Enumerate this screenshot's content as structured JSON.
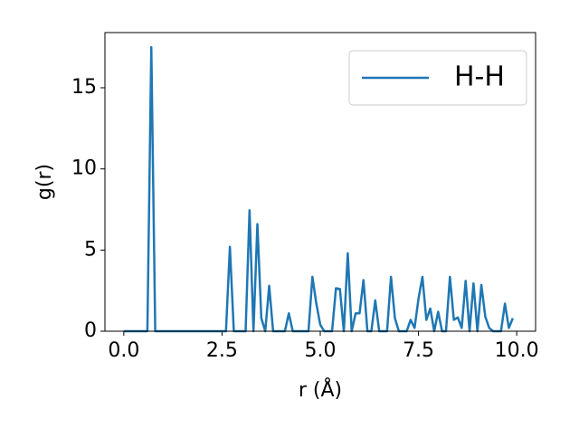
{
  "chart_data": {
    "type": "line",
    "xlabel": "r (Å)",
    "ylabel": "g(r)",
    "x": [
      0,
      0.1,
      0.2,
      0.3,
      0.4,
      0.5,
      0.6,
      0.7,
      0.8,
      0.9,
      1,
      1.1,
      1.2,
      1.3,
      1.4,
      1.5,
      1.6,
      1.7,
      1.8,
      1.9,
      2,
      2.1,
      2.2,
      2.3,
      2.4,
      2.5,
      2.6,
      2.7,
      2.8,
      2.9,
      3,
      3.1,
      3.2,
      3.3,
      3.4,
      3.5,
      3.6,
      3.7,
      3.8,
      3.9,
      4,
      4.1,
      4.2,
      4.3,
      4.4,
      4.5,
      4.6,
      4.7,
      4.8,
      4.9,
      5,
      5.1,
      5.2,
      5.3,
      5.4,
      5.5,
      5.6,
      5.7,
      5.8,
      5.9,
      6,
      6.1,
      6.2,
      6.3,
      6.4,
      6.5,
      6.6,
      6.7,
      6.8,
      6.9,
      7,
      7.1,
      7.2,
      7.3,
      7.4,
      7.5,
      7.6,
      7.7,
      7.8,
      7.9,
      8,
      8.1,
      8.2,
      8.3,
      8.4,
      8.5,
      8.6,
      8.7,
      8.8,
      8.9,
      9,
      9.1,
      9.2,
      9.3,
      9.4,
      9.5,
      9.6,
      9.7,
      9.8,
      9.9
    ],
    "series": [
      {
        "name": "H-H",
        "color": "#1f77b4",
        "values": [
          0,
          0,
          0,
          0,
          0,
          0,
          0,
          17.5,
          0,
          0,
          0,
          0,
          0,
          0,
          0,
          0,
          0,
          0,
          0,
          0,
          0,
          0,
          0,
          0,
          0,
          0,
          0,
          5.2,
          0,
          0,
          0,
          0,
          7.45,
          0,
          6.6,
          0.8,
          0,
          2.8,
          0,
          0,
          0,
          0,
          1.1,
          0,
          0,
          0,
          0,
          0,
          3.35,
          1.7,
          0.4,
          0,
          0,
          0,
          2.65,
          2.6,
          0,
          4.8,
          0,
          1.1,
          1.1,
          3.15,
          0,
          0,
          1.9,
          0,
          0,
          0,
          3.35,
          0.8,
          0,
          0,
          0,
          0.7,
          0.2,
          2.0,
          3.35,
          0.7,
          1.4,
          0,
          1.2,
          0,
          0,
          3.35,
          0.7,
          0.85,
          0.2,
          3.1,
          0,
          2.95,
          0,
          2.85,
          0.9,
          0.2,
          0,
          0,
          0,
          1.7,
          0.2,
          0.8
        ]
      }
    ],
    "xlim": [
      -0.48,
      10.48
    ],
    "ylim": [
      0,
      18.4
    ],
    "xticks": [
      {
        "value": 0,
        "label": "0.0"
      },
      {
        "value": 2.5,
        "label": "2.5"
      },
      {
        "value": 5,
        "label": "5.0"
      },
      {
        "value": 7.5,
        "label": "7.5"
      },
      {
        "value": 10,
        "label": "10.0"
      }
    ],
    "yticks": [
      0,
      5,
      10,
      15
    ],
    "legend": "upper right"
  }
}
